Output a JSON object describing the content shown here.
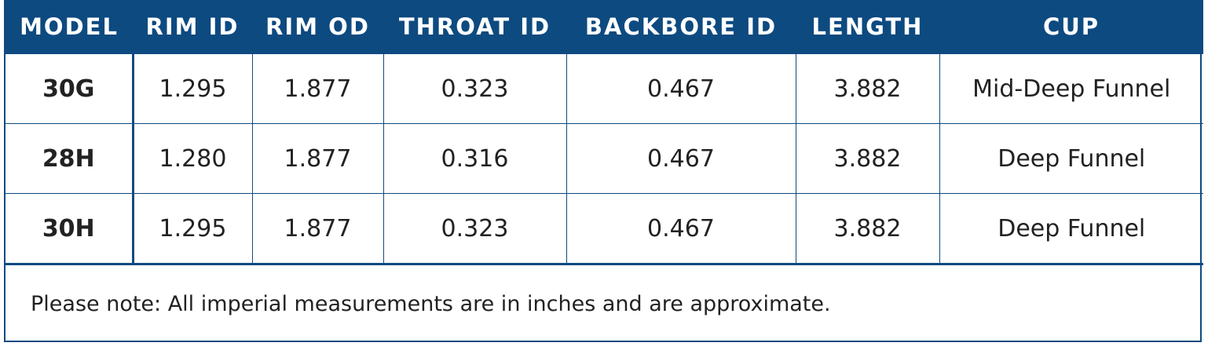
{
  "table": {
    "headers": [
      "MODEL",
      "RIM ID",
      "RIM OD",
      "THROAT ID",
      "BACKBORE ID",
      "LENGTH",
      "CUP"
    ],
    "rows": [
      [
        "30G",
        "1.295",
        "1.877",
        "0.323",
        "0.467",
        "3.882",
        "Mid-Deep Funnel"
      ],
      [
        "28H",
        "1.280",
        "1.877",
        "0.316",
        "0.467",
        "3.882",
        "Deep Funnel"
      ],
      [
        "30H",
        "1.295",
        "1.877",
        "0.323",
        "0.467",
        "3.882",
        "Deep Funnel"
      ]
    ],
    "note": "Please note: All imperial measurements are in inches and are approximate."
  }
}
